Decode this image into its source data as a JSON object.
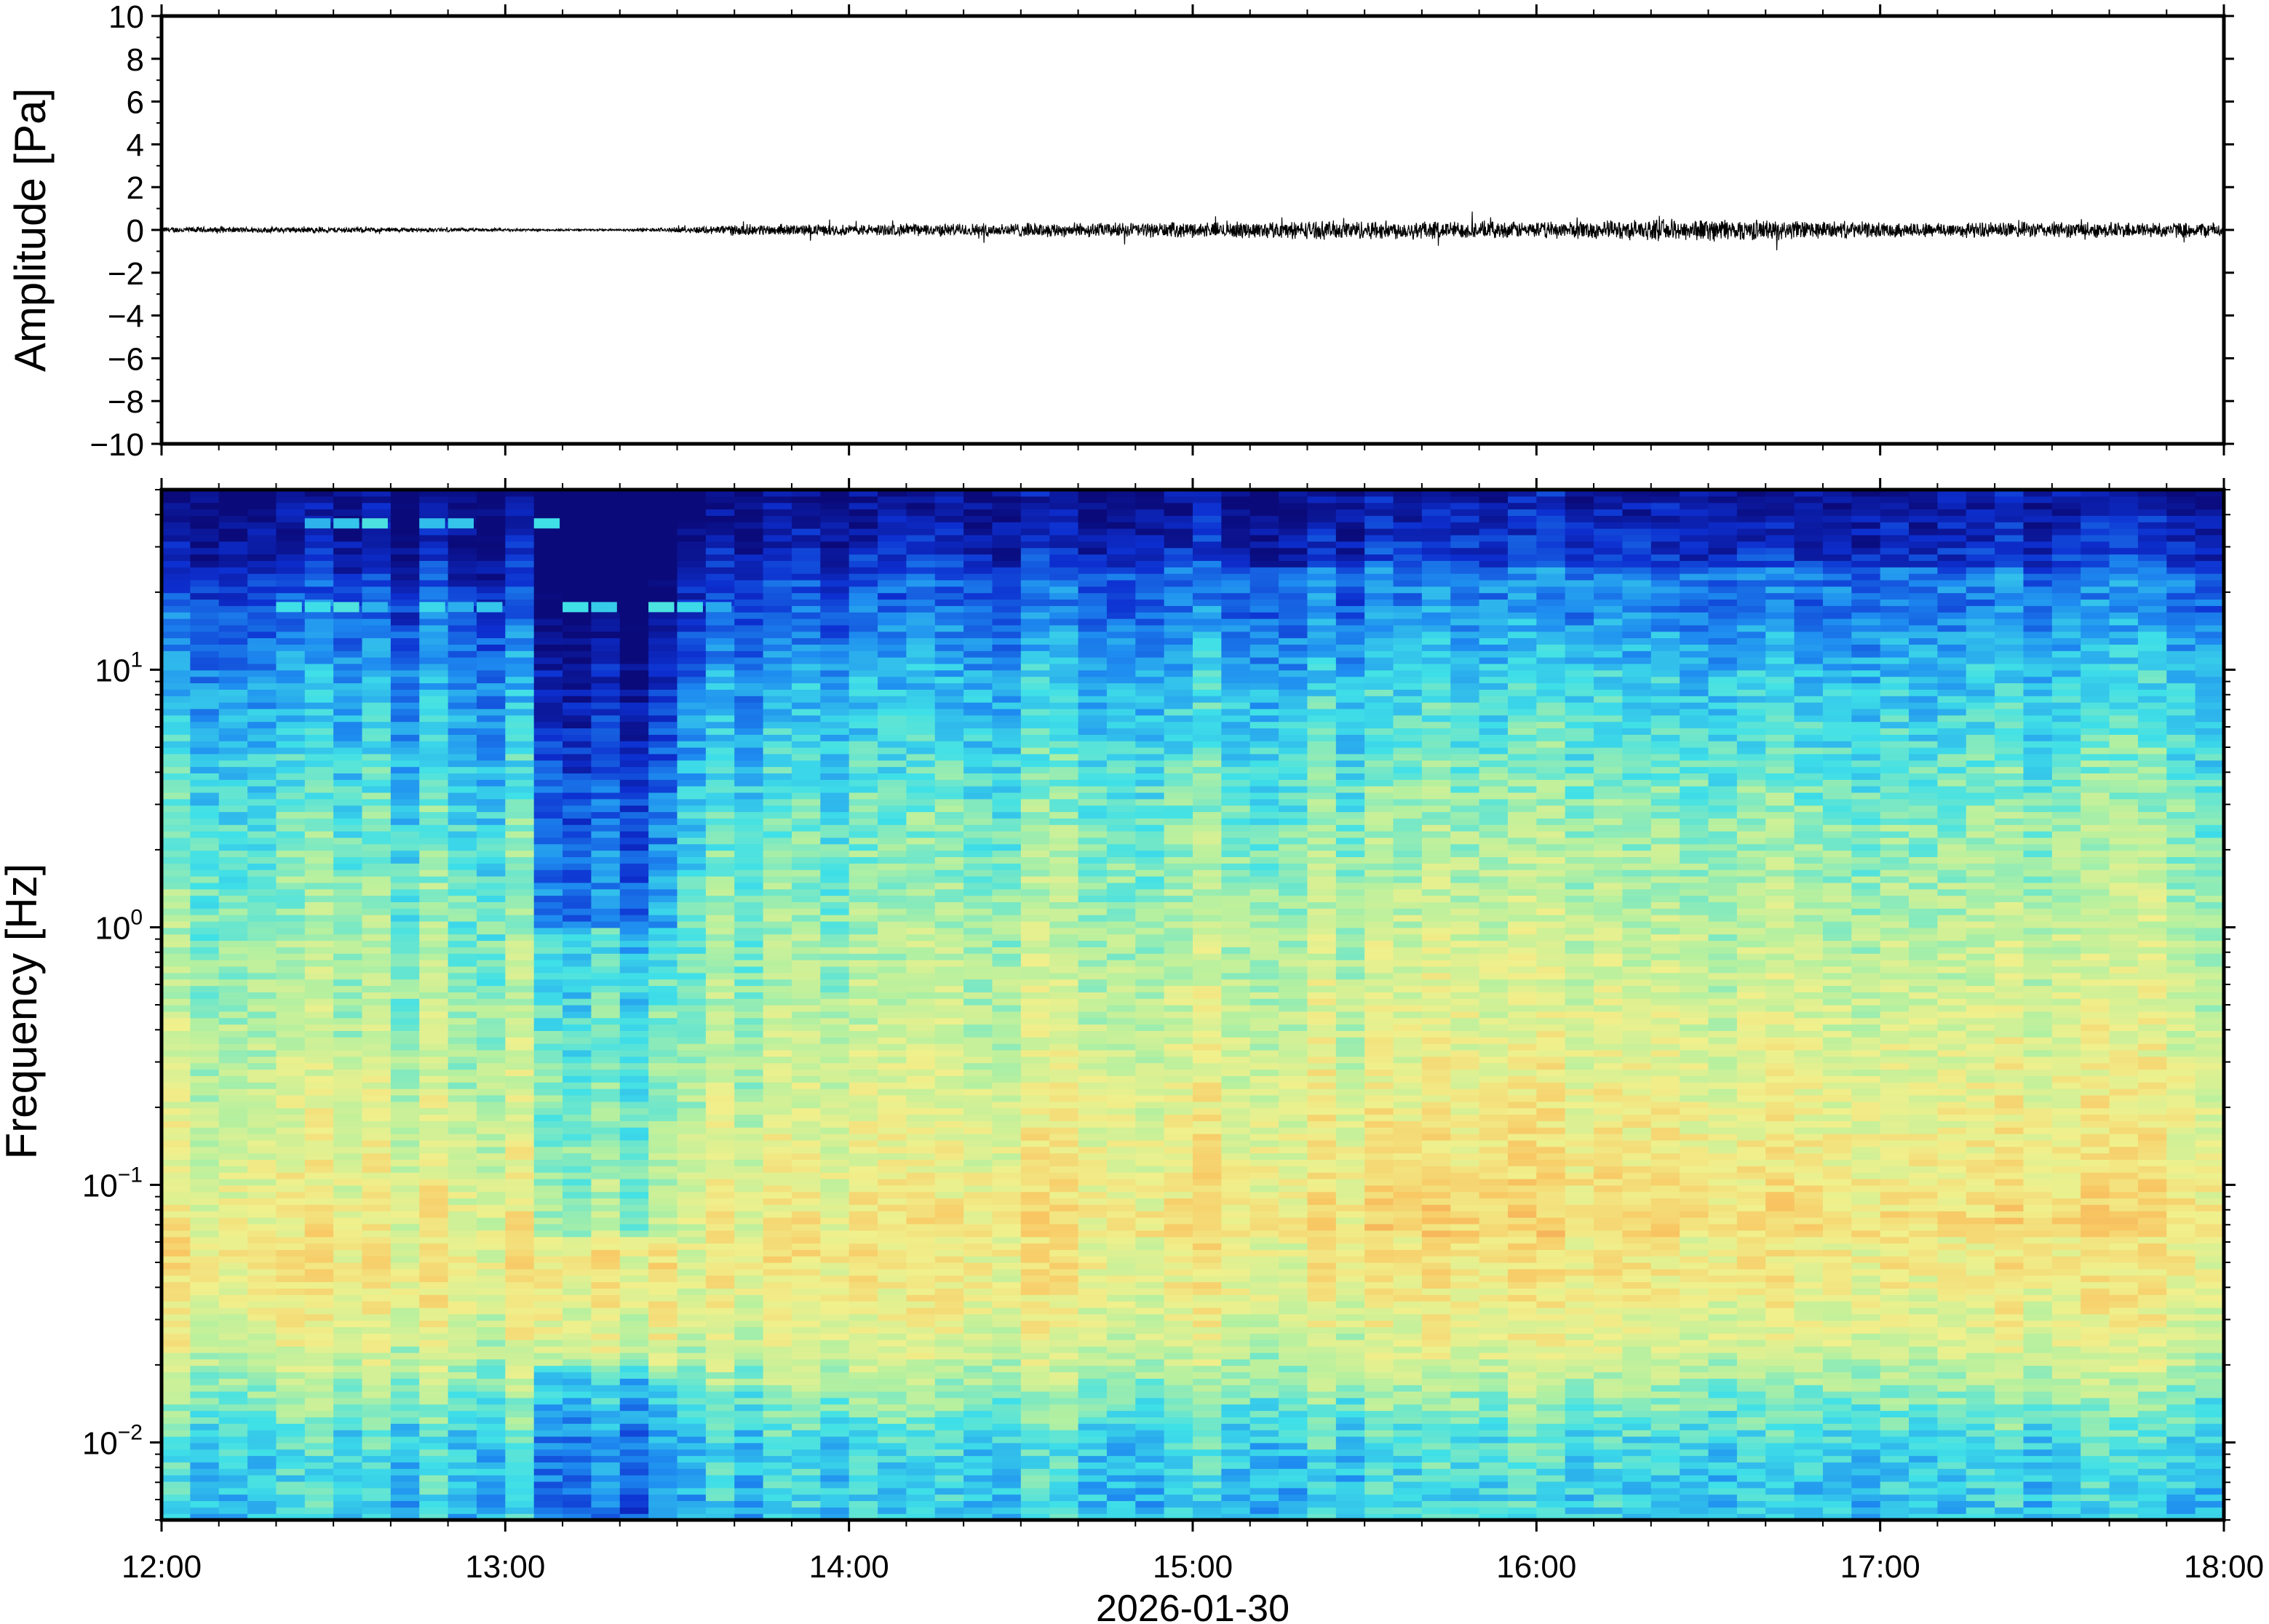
{
  "chart_data": [
    {
      "type": "line",
      "panel": "waveform",
      "title": "",
      "xlabel": "",
      "ylabel": "Amplitude [Pa]",
      "xlim": [
        "12:00",
        "18:00"
      ],
      "ylim": [
        -10,
        10
      ],
      "y_ticks": [
        -10,
        -8,
        -6,
        -4,
        -2,
        0,
        2,
        4,
        6,
        8,
        10
      ],
      "y_tick_labels": [
        "−10",
        "−8",
        "−6",
        "−4",
        "−2",
        "0",
        "2",
        "4",
        "6",
        "8",
        "10"
      ],
      "line_color": "#000000",
      "envelope": {
        "x_hours": [
          "12:00",
          "12:30",
          "13:00",
          "13:10",
          "13:20",
          "13:30",
          "13:40",
          "14:00",
          "14:30",
          "15:00",
          "15:30",
          "16:00",
          "16:30",
          "17:00",
          "17:30",
          "18:00"
        ],
        "half_amplitude": [
          0.12,
          0.12,
          0.06,
          0.04,
          0.04,
          0.1,
          0.22,
          0.22,
          0.28,
          0.3,
          0.38,
          0.32,
          0.45,
          0.3,
          0.32,
          0.3
        ]
      }
    },
    {
      "type": "heatmap",
      "panel": "spectrogram",
      "title": "",
      "xlabel": "2026-01-30",
      "ylabel": "Frequency [Hz]",
      "x_ticks": [
        "12:00",
        "13:00",
        "14:00",
        "15:00",
        "16:00",
        "17:00",
        "18:00"
      ],
      "y_scale": "log",
      "ylim": [
        0.005,
        50
      ],
      "y_ticks": [
        0.01,
        0.1,
        1,
        10
      ],
      "y_tick_labels": [
        {
          "base": "10",
          "exp": "−2"
        },
        {
          "base": "10",
          "exp": "−1"
        },
        {
          "base": "10",
          "exp": "0"
        },
        {
          "base": "10",
          "exp": "1"
        }
      ],
      "colormap": [
        "#0a0a7a",
        "#0d2fd0",
        "#1e8cf0",
        "#3fe0e8",
        "#b4f0a0",
        "#f0f08c",
        "#f8c864",
        "#f4964a"
      ],
      "time_columns": 72,
      "frequency_rows": 160,
      "level_profile": {
        "log10_freq": [
          -2.3,
          -2.0,
          -1.6,
          -1.3,
          -1.0,
          -0.5,
          0.0,
          0.5,
          1.0,
          1.3,
          1.5,
          1.7
        ],
        "level": [
          0.38,
          0.42,
          0.66,
          0.74,
          0.68,
          0.6,
          0.53,
          0.44,
          0.3,
          0.17,
          0.06,
          0.0
        ]
      },
      "quiet_interval": {
        "start": "13:05",
        "end": "13:32",
        "level_drop": 0.18
      },
      "tonal_lines": [
        {
          "start": "12:20",
          "end": "13:45",
          "freq_hz": 17.5
        },
        {
          "start": "12:25",
          "end": "13:05",
          "freq_hz": 37
        }
      ]
    }
  ]
}
